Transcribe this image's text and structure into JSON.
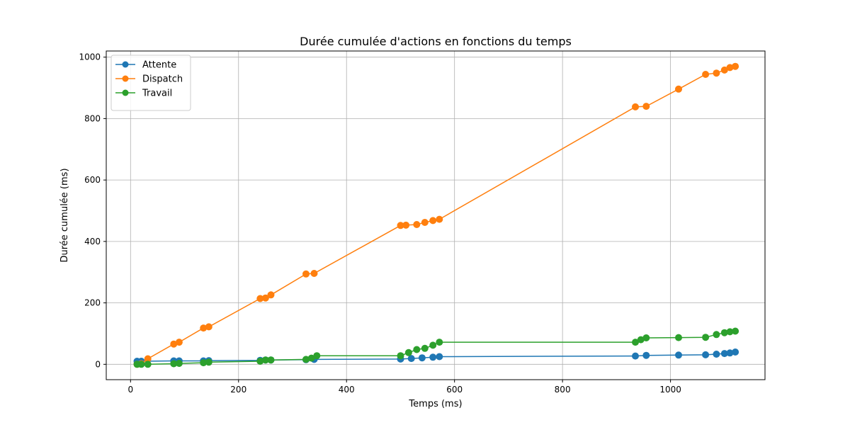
{
  "chart_data": {
    "type": "line",
    "title": "Durée cumulée d'actions en fonctions du temps",
    "xlabel": "Temps (ms)",
    "ylabel": "Durée cumulée (ms)",
    "xlim": [
      -45,
      1175
    ],
    "ylim": [
      -50,
      1020
    ],
    "xticks": [
      0,
      200,
      400,
      600,
      800,
      1000
    ],
    "yticks": [
      0,
      200,
      400,
      600,
      800,
      1000
    ],
    "grid": true,
    "legend": "top-left",
    "series": [
      {
        "name": "Attente",
        "color": "#1f77b4",
        "points": [
          [
            12,
            10
          ],
          [
            20,
            10
          ],
          [
            80,
            11
          ],
          [
            90,
            11
          ],
          [
            135,
            11
          ],
          [
            145,
            12
          ],
          [
            240,
            13
          ],
          [
            250,
            14
          ],
          [
            260,
            14
          ],
          [
            325,
            15
          ],
          [
            340,
            16
          ],
          [
            500,
            17
          ],
          [
            520,
            19
          ],
          [
            540,
            21
          ],
          [
            560,
            23
          ],
          [
            572,
            25
          ],
          [
            935,
            27
          ],
          [
            955,
            29
          ],
          [
            1015,
            30
          ],
          [
            1065,
            31
          ],
          [
            1085,
            33
          ],
          [
            1100,
            35
          ],
          [
            1110,
            37
          ],
          [
            1120,
            40
          ]
        ]
      },
      {
        "name": "Dispatch",
        "color": "#ff7f0e",
        "points": [
          [
            12,
            0
          ],
          [
            20,
            2
          ],
          [
            32,
            18
          ],
          [
            80,
            66
          ],
          [
            90,
            72
          ],
          [
            135,
            118
          ],
          [
            145,
            122
          ],
          [
            240,
            214
          ],
          [
            250,
            216
          ],
          [
            260,
            226
          ],
          [
            325,
            294
          ],
          [
            340,
            296
          ],
          [
            500,
            452
          ],
          [
            510,
            453
          ],
          [
            530,
            455
          ],
          [
            545,
            462
          ],
          [
            560,
            468
          ],
          [
            572,
            472
          ],
          [
            935,
            838
          ],
          [
            955,
            840
          ],
          [
            1015,
            896
          ],
          [
            1065,
            944
          ],
          [
            1085,
            948
          ],
          [
            1100,
            958
          ],
          [
            1110,
            966
          ],
          [
            1120,
            970
          ]
        ]
      },
      {
        "name": "Travail",
        "color": "#2ca02c",
        "points": [
          [
            12,
            0
          ],
          [
            20,
            0
          ],
          [
            32,
            0
          ],
          [
            80,
            2
          ],
          [
            90,
            3
          ],
          [
            135,
            5
          ],
          [
            145,
            7
          ],
          [
            240,
            10
          ],
          [
            250,
            14
          ],
          [
            260,
            14
          ],
          [
            325,
            16
          ],
          [
            335,
            20
          ],
          [
            345,
            28
          ],
          [
            500,
            28
          ],
          [
            515,
            38
          ],
          [
            530,
            48
          ],
          [
            545,
            52
          ],
          [
            560,
            62
          ],
          [
            572,
            72
          ],
          [
            935,
            72
          ],
          [
            945,
            80
          ],
          [
            955,
            86
          ],
          [
            1015,
            87
          ],
          [
            1065,
            88
          ],
          [
            1085,
            97
          ],
          [
            1100,
            103
          ],
          [
            1110,
            106
          ],
          [
            1120,
            108
          ]
        ]
      }
    ]
  }
}
